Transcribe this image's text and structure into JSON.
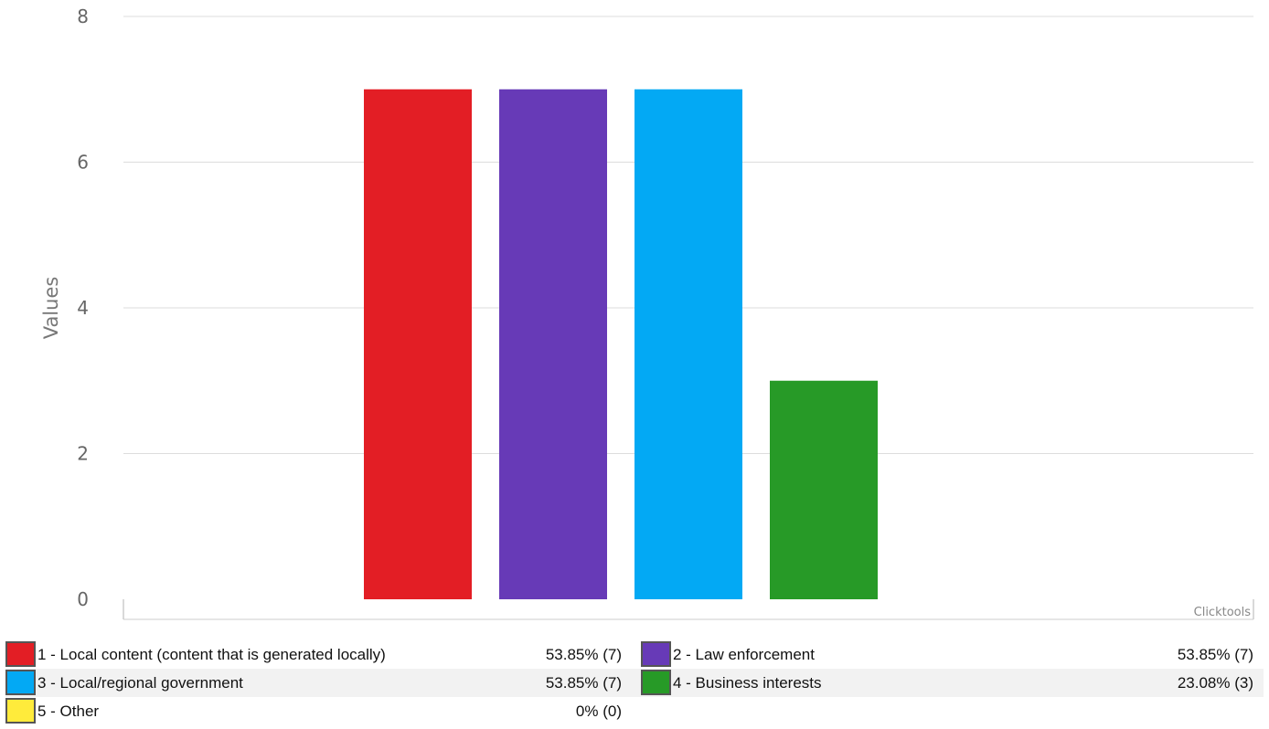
{
  "chart_data": {
    "type": "bar",
    "categories": [
      "1 - Local content (content that is generated locally)",
      "2 - Law enforcement",
      "3 - Local/regional government",
      "4 - Business interests",
      "5 - Other"
    ],
    "values": [
      7,
      7,
      7,
      3,
      0
    ],
    "percentages": [
      "53.85% (7)",
      "53.85% (7)",
      "53.85% (7)",
      "23.08% (3)",
      "0% (0)"
    ],
    "colors": [
      "#e31e25",
      "#673ab7",
      "#03a9f4",
      "#279a27",
      "#ffeb3b"
    ],
    "ylabel": "Values",
    "ylim": [
      0,
      8
    ],
    "yticks": [
      0,
      2,
      4,
      6,
      8
    ],
    "grid": true,
    "credit": "Clicktools"
  }
}
